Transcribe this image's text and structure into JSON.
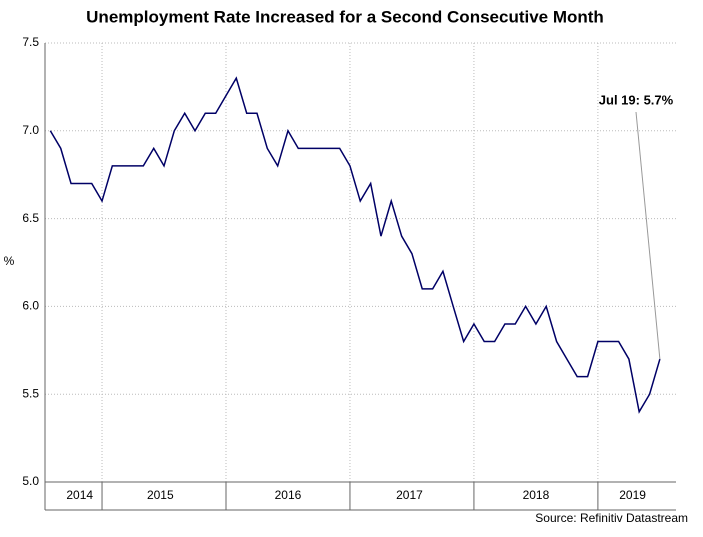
{
  "chart_data": {
    "type": "line",
    "title": "Unemployment Rate Increased for a Second Consecutive Month",
    "y_label": "%",
    "source": "Source: Refinitiv Datastream",
    "annotation": {
      "text": "Jul 19: 5.7%",
      "index": 59
    },
    "x": [
      2014.583,
      2014.667,
      2014.75,
      2014.833,
      2014.917,
      2015.0,
      2015.083,
      2015.167,
      2015.25,
      2015.333,
      2015.417,
      2015.5,
      2015.583,
      2015.667,
      2015.75,
      2015.833,
      2015.917,
      2016.0,
      2016.083,
      2016.167,
      2016.25,
      2016.333,
      2016.417,
      2016.5,
      2016.583,
      2016.667,
      2016.75,
      2016.833,
      2016.917,
      2017.0,
      2017.083,
      2017.167,
      2017.25,
      2017.333,
      2017.417,
      2017.5,
      2017.583,
      2017.667,
      2017.75,
      2017.833,
      2017.917,
      2018.0,
      2018.083,
      2018.167,
      2018.25,
      2018.333,
      2018.417,
      2018.5,
      2018.583,
      2018.667,
      2018.75,
      2018.833,
      2018.917,
      2019.0,
      2019.083,
      2019.167,
      2019.25,
      2019.333,
      2019.417,
      2019.5
    ],
    "series": [
      {
        "name": "Unemployment rate",
        "color": "#000066",
        "values": [
          7.0,
          6.9,
          6.7,
          6.7,
          6.7,
          6.6,
          6.8,
          6.8,
          6.8,
          6.8,
          6.9,
          6.8,
          7.0,
          7.1,
          7.0,
          7.1,
          7.1,
          7.2,
          7.3,
          7.1,
          7.1,
          6.9,
          6.8,
          7.0,
          6.9,
          6.9,
          6.9,
          6.9,
          6.9,
          6.8,
          6.6,
          6.7,
          6.4,
          6.6,
          6.4,
          6.3,
          6.1,
          6.1,
          6.2,
          6.0,
          5.8,
          5.9,
          5.8,
          5.8,
          5.9,
          5.9,
          6.0,
          5.9,
          6.0,
          5.8,
          5.7,
          5.6,
          5.6,
          5.8,
          5.8,
          5.8,
          5.7,
          5.4,
          5.5,
          5.7
        ]
      }
    ],
    "xlim": [
      2014.54,
      2019.63
    ],
    "xgrid": [
      2015,
      2016,
      2017,
      2018,
      2019
    ],
    "xlabels": [
      {
        "value": 2014.82,
        "label": "2014"
      },
      {
        "value": 2015.47,
        "label": "2015"
      },
      {
        "value": 2016.5,
        "label": "2016"
      },
      {
        "value": 2017.48,
        "label": "2017"
      },
      {
        "value": 2018.5,
        "label": "2018"
      },
      {
        "value": 2019.28,
        "label": "2019"
      }
    ],
    "ylim": [
      5.0,
      7.5
    ],
    "yticks": [
      {
        "value": 5.0,
        "label": "5.0"
      },
      {
        "value": 5.5,
        "label": "5.5"
      },
      {
        "value": 6.0,
        "label": "6.0"
      },
      {
        "value": 6.5,
        "label": "6.5"
      },
      {
        "value": 7.0,
        "label": "7.0"
      },
      {
        "value": 7.5,
        "label": "7.5"
      }
    ],
    "grid": true
  }
}
